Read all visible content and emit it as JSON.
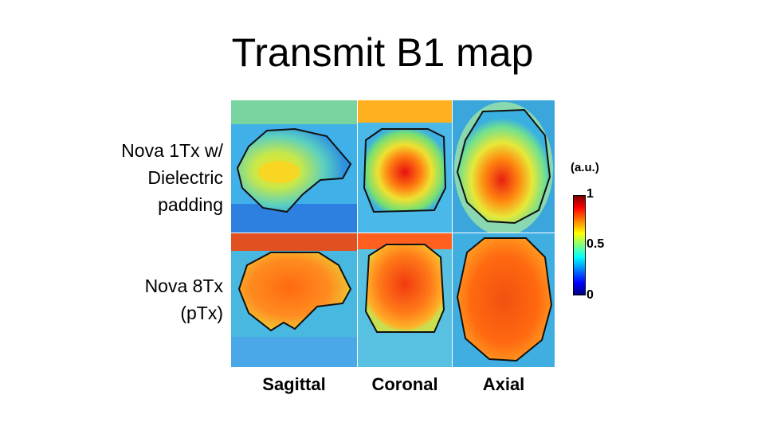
{
  "slide": {
    "title": "Transmit B1 map"
  },
  "rows": [
    {
      "lines": [
        "Nova 1Tx w/",
        "Dielectric",
        "padding"
      ]
    },
    {
      "lines": [
        "Nova 8Tx",
        "(pTx)"
      ]
    }
  ],
  "columns": [
    "Sagittal",
    "Coronal",
    "Axial"
  ],
  "colorbar": {
    "unit": "(a.u.)",
    "ticks": [
      "1",
      "0.5",
      "0"
    ],
    "colormap": "jet"
  }
}
